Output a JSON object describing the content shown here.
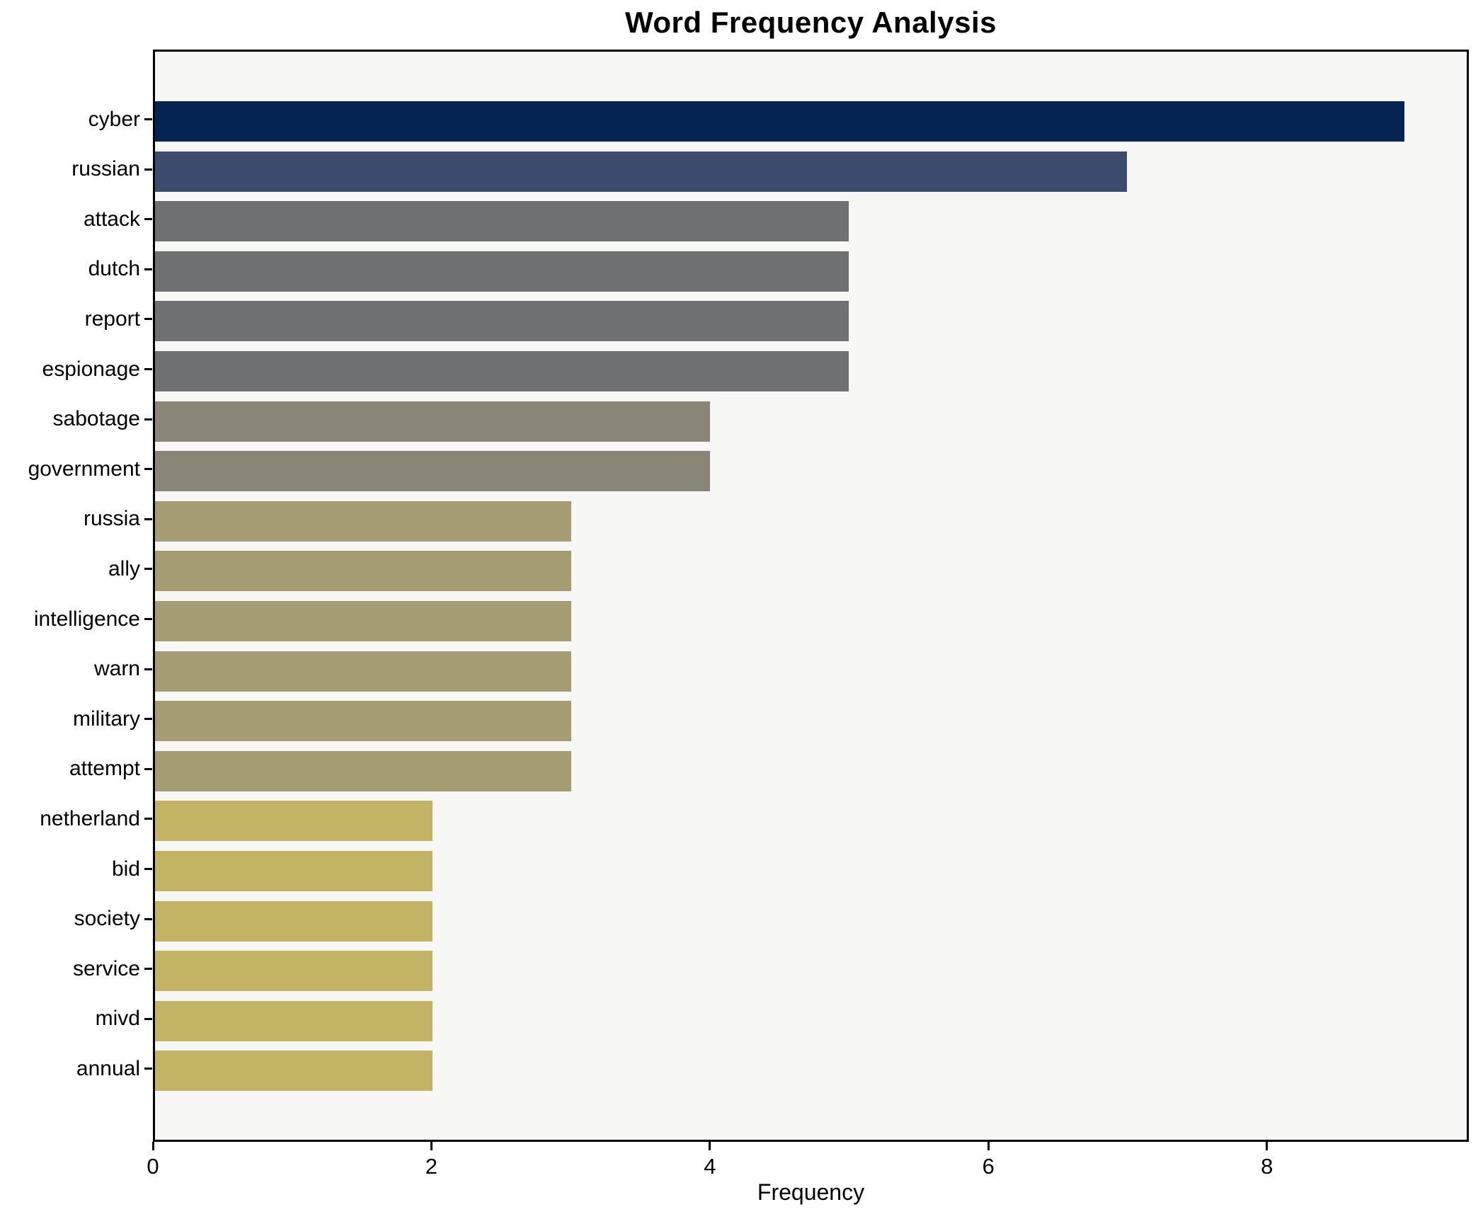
{
  "chart_data": {
    "type": "bar",
    "orientation": "horizontal",
    "title": "Word Frequency Analysis",
    "xlabel": "Frequency",
    "ylabel": "",
    "categories": [
      "cyber",
      "russian",
      "attack",
      "dutch",
      "report",
      "espionage",
      "sabotage",
      "government",
      "russia",
      "ally",
      "intelligence",
      "warn",
      "military",
      "attempt",
      "netherland",
      "bid",
      "society",
      "service",
      "mivd",
      "annual"
    ],
    "values": [
      9,
      7,
      5,
      5,
      5,
      5,
      4,
      4,
      3,
      3,
      3,
      3,
      3,
      3,
      2,
      2,
      2,
      2,
      2,
      2
    ],
    "bar_colors": [
      "#052350",
      "#3d4b6e",
      "#6f7071",
      "#6f7071",
      "#6f7071",
      "#6f7071",
      "#8a8677",
      "#8a8677",
      "#a59c73",
      "#a59c73",
      "#a59c73",
      "#a59c73",
      "#a59c73",
      "#a59c73",
      "#c2b365",
      "#c2b365",
      "#c2b365",
      "#c2b365",
      "#c2b365",
      "#c2b365"
    ],
    "xlim": [
      0,
      9.45
    ],
    "xticks": [
      0,
      2,
      4,
      6,
      8
    ],
    "xtick_labels": [
      "0",
      "2",
      "4",
      "6",
      "8"
    ],
    "grid": false,
    "legend": null,
    "plot_background": "#f7f7f6",
    "figure_background": "#ffffff",
    "spine_color": "#000000",
    "text_color": "#000000"
  }
}
